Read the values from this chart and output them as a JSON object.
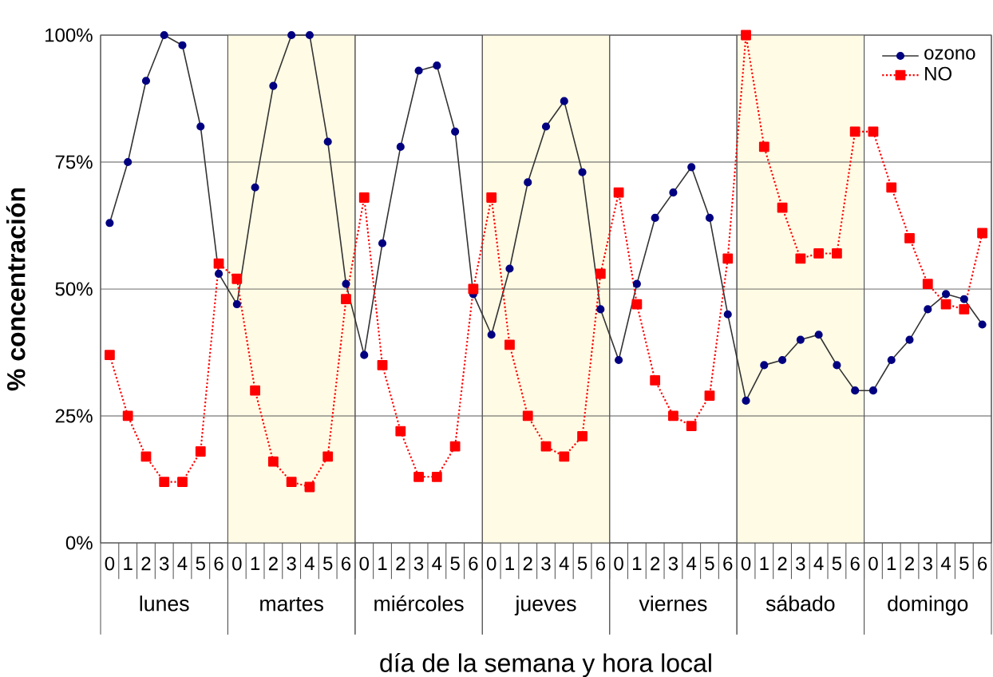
{
  "chart_data": {
    "type": "line",
    "xlabel": "día de la semana y hora local",
    "ylabel": "% concentración",
    "categories": [
      "0",
      "1",
      "2",
      "3",
      "4",
      "5",
      "6",
      "0",
      "1",
      "2",
      "3",
      "4",
      "5",
      "6",
      "0",
      "1",
      "2",
      "3",
      "4",
      "5",
      "6",
      "0",
      "1",
      "2",
      "3",
      "4",
      "5",
      "6",
      "0",
      "1",
      "2",
      "3",
      "4",
      "5",
      "6",
      "0",
      "1",
      "2",
      "3",
      "4",
      "5",
      "6",
      "0",
      "1",
      "2",
      "3",
      "4",
      "5",
      "6"
    ],
    "series": [
      {
        "name": "ozono",
        "color": "#000080",
        "marker": "circle",
        "line_style": "solid",
        "values": [
          63,
          75,
          91,
          100,
          98,
          82,
          53,
          47,
          70,
          90,
          100,
          100,
          79,
          51,
          37,
          59,
          78,
          93,
          94,
          81,
          49,
          41,
          54,
          71,
          82,
          87,
          73,
          46,
          36,
          51,
          64,
          69,
          74,
          64,
          45,
          28,
          35,
          36,
          40,
          41,
          35,
          30,
          30,
          36,
          40,
          46,
          49,
          48,
          43
        ]
      },
      {
        "name": "NO",
        "color": "#ff0000",
        "marker": "square",
        "line_style": "dotted",
        "values": [
          37,
          25,
          17,
          12,
          12,
          18,
          55,
          52,
          30,
          16,
          12,
          11,
          17,
          48,
          68,
          35,
          22,
          13,
          13,
          19,
          50,
          68,
          39,
          25,
          19,
          17,
          21,
          53,
          69,
          47,
          32,
          25,
          23,
          29,
          56,
          100,
          78,
          66,
          56,
          57,
          57,
          81,
          81,
          70,
          60,
          51,
          47,
          46,
          61
        ]
      }
    ],
    "ylim": [
      0,
      100
    ],
    "yticks": [
      {
        "value": 0,
        "label": "0%"
      },
      {
        "value": 25,
        "label": "25%"
      },
      {
        "value": 50,
        "label": "50%"
      },
      {
        "value": 75,
        "label": "75%"
      },
      {
        "value": 100,
        "label": "100%"
      }
    ],
    "grid": "y",
    "legend": "top right",
    "annotations": [
      "lunes",
      "martes",
      "miércoles",
      "jueves",
      "viernes",
      "sábado",
      "domingo"
    ]
  }
}
